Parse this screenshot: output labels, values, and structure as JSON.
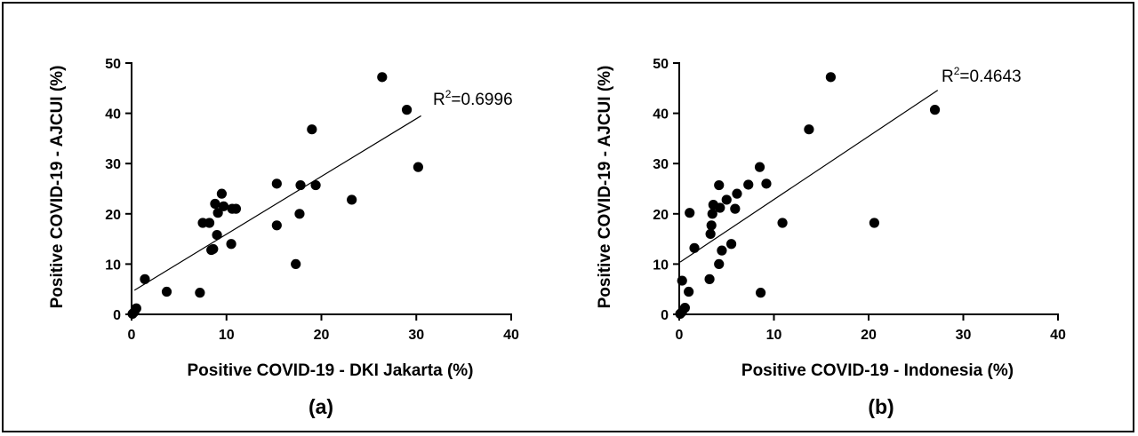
{
  "chart_data": [
    {
      "type": "scatter",
      "panel_label": "(a)",
      "xlabel": "Positive COVID-19 - DKI Jakarta (%)",
      "ylabel": "Positive COVID-19 - AJCUI (%)",
      "xlim": [
        0,
        40
      ],
      "ylim": [
        0,
        50
      ],
      "xticks": [
        0,
        10,
        20,
        30,
        40
      ],
      "yticks": [
        0,
        10,
        20,
        30,
        40,
        50
      ],
      "r2_prefix": "R",
      "r2_sup": "2",
      "r2_value": "=0.6996",
      "fit_line": {
        "x": [
          0.3,
          30.5
        ],
        "y": [
          4.8,
          39.5
        ]
      },
      "points": [
        [
          0.1,
          0.1
        ],
        [
          0.3,
          0.5
        ],
        [
          0.5,
          1.2
        ],
        [
          1.4,
          7.0
        ],
        [
          3.7,
          4.5
        ],
        [
          7.2,
          4.3
        ],
        [
          7.5,
          18.2
        ],
        [
          8.2,
          18.2
        ],
        [
          8.4,
          12.8
        ],
        [
          8.6,
          13.0
        ],
        [
          8.8,
          22.0
        ],
        [
          9.0,
          15.8
        ],
        [
          9.1,
          20.2
        ],
        [
          9.5,
          24.0
        ],
        [
          9.7,
          21.5
        ],
        [
          10.5,
          14.0
        ],
        [
          10.6,
          21.0
        ],
        [
          11.0,
          21.0
        ],
        [
          15.3,
          26.0
        ],
        [
          15.3,
          17.7
        ],
        [
          17.3,
          10.0
        ],
        [
          17.7,
          20.0
        ],
        [
          17.8,
          25.7
        ],
        [
          19.0,
          36.8
        ],
        [
          19.4,
          25.7
        ],
        [
          23.2,
          22.8
        ],
        [
          26.4,
          47.2
        ],
        [
          29.0,
          40.7
        ],
        [
          30.2,
          29.3
        ]
      ]
    },
    {
      "type": "scatter",
      "panel_label": "(b)",
      "xlabel": "Positive COVID-19 - Indonesia (%)",
      "ylabel": "Positive COVID-19 - AJCUI (%)",
      "xlim": [
        0,
        40
      ],
      "ylim": [
        0,
        50
      ],
      "xticks": [
        0,
        10,
        20,
        30,
        40
      ],
      "yticks": [
        0,
        10,
        20,
        30,
        40,
        50
      ],
      "r2_prefix": "R",
      "r2_sup": "2",
      "r2_value": "=0.4643",
      "fit_line": {
        "x": [
          0.1,
          27.3
        ],
        "y": [
          10.4,
          44.6
        ]
      },
      "points": [
        [
          0.1,
          0.1
        ],
        [
          0.3,
          0.5
        ],
        [
          0.3,
          6.7
        ],
        [
          0.6,
          1.3
        ],
        [
          1.0,
          4.5
        ],
        [
          1.1,
          20.2
        ],
        [
          1.6,
          13.2
        ],
        [
          3.2,
          7.0
        ],
        [
          3.3,
          16.0
        ],
        [
          3.4,
          17.7
        ],
        [
          3.5,
          20.0
        ],
        [
          3.6,
          21.8
        ],
        [
          4.2,
          25.7
        ],
        [
          4.2,
          10.0
        ],
        [
          4.3,
          21.2
        ],
        [
          4.5,
          12.7
        ],
        [
          5.0,
          22.8
        ],
        [
          5.5,
          14.0
        ],
        [
          5.9,
          21.0
        ],
        [
          6.1,
          24.0
        ],
        [
          7.3,
          25.8
        ],
        [
          8.5,
          29.3
        ],
        [
          8.6,
          4.3
        ],
        [
          9.2,
          26.0
        ],
        [
          10.9,
          18.2
        ],
        [
          13.7,
          36.8
        ],
        [
          16.0,
          47.2
        ],
        [
          20.6,
          18.2
        ],
        [
          27.0,
          40.7
        ]
      ]
    }
  ]
}
